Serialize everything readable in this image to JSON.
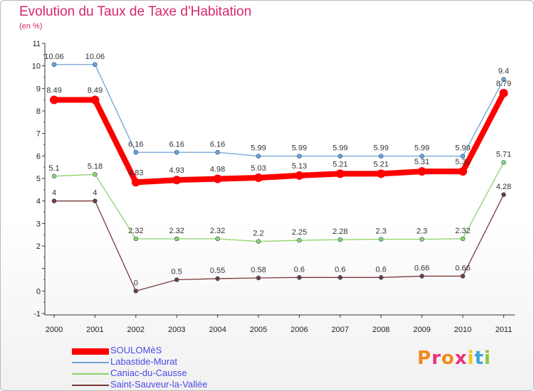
{
  "header": {
    "title": "Evolution du Taux de Taxe d'Habitation",
    "subtitle": "(en %)"
  },
  "chart_data": {
    "type": "line",
    "title": "Evolution du Taux de Taxe d'Habitation",
    "ylabel": "(en %)",
    "xlabel": "",
    "x": [
      "2000",
      "2001",
      "2002",
      "2003",
      "2004",
      "2005",
      "2006",
      "2007",
      "2008",
      "2009",
      "2010",
      "2011"
    ],
    "ylim": [
      -1,
      11
    ],
    "yticks": [
      "-1",
      "0",
      "",
      "2",
      "3",
      "4",
      "5",
      "6",
      "7",
      "8",
      "9",
      "10",
      "11"
    ],
    "grid": false,
    "legend_position": "bottom-left",
    "series": [
      {
        "name": "SOULOMèS",
        "color": "#ff0000",
        "values": [
          8.49,
          8.49,
          4.83,
          4.93,
          4.98,
          5.03,
          5.13,
          5.21,
          5.21,
          5.31,
          5.31,
          8.79
        ],
        "labels": [
          "8.49",
          "8.49",
          "4.83",
          "4.93",
          "4.98",
          "5.03",
          "5.13",
          "5.21",
          "5.21",
          "5.31",
          "5.31",
          "8.79"
        ]
      },
      {
        "name": "Labastide-Murat",
        "color": "#6fa3d6",
        "values": [
          10.06,
          10.06,
          6.16,
          6.16,
          6.16,
          5.99,
          5.99,
          5.99,
          5.99,
          5.99,
          5.99,
          9.4
        ],
        "labels": [
          "10.06",
          "10.06",
          "6.16",
          "6.16",
          "6.16",
          "5.99",
          "5.99",
          "5.99",
          "5.99",
          "5.99",
          "5.99",
          "9.4"
        ]
      },
      {
        "name": "Caniac-du-Causse",
        "color": "#8fd36a",
        "values": [
          5.1,
          5.18,
          2.32,
          2.32,
          2.32,
          2.2,
          2.25,
          2.28,
          2.3,
          2.3,
          2.32,
          5.71
        ],
        "labels": [
          "5.1",
          "5.18",
          "2.32",
          "2.32",
          "2.32",
          "2.2",
          "2.25",
          "2.28",
          "2.3",
          "2.3",
          "2.32",
          "5.71"
        ]
      },
      {
        "name": "Saint-Sauveur-la-Vallée",
        "color": "#7a3a3a",
        "values": [
          4,
          4,
          0,
          0.5,
          0.55,
          0.58,
          0.6,
          0.6,
          0.6,
          0.66,
          0.66,
          4.28
        ],
        "labels": [
          "4",
          "4",
          "0",
          "0.5",
          "0.55",
          "0.58",
          "0.6",
          "0.6",
          "0.6",
          "0.66",
          "0.66",
          "4.28"
        ]
      }
    ]
  },
  "logo": {
    "text": "Proxiti",
    "colors": [
      "#f08a1c",
      "#e8327a",
      "#f08a1c",
      "#e8327a",
      "#f2c21a",
      "#3aa2dc",
      "#8cc63f"
    ]
  }
}
